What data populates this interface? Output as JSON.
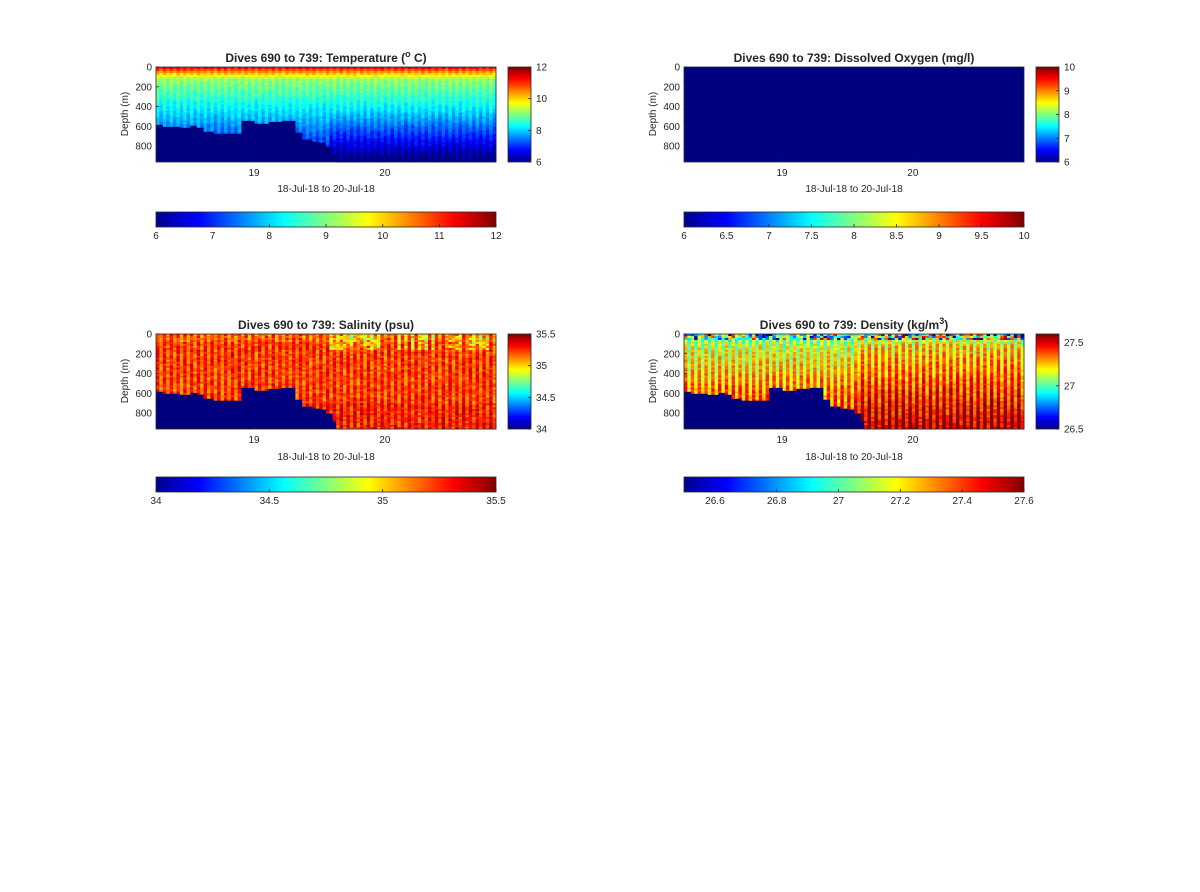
{
  "chart_data": [
    {
      "type": "heatmap",
      "title": "Dives 690 to 739: Temperature (",
      "title_sup": "o",
      "title_tail": " C)",
      "xlabel": "18-Jul-18 to 20-Jul-18",
      "ylabel": "Depth (m)",
      "x_ticks": [
        "19",
        "20"
      ],
      "x_tick_values": [
        19,
        20
      ],
      "xlim": [
        18.25,
        20.85
      ],
      "ylim": [
        0,
        960
      ],
      "y_ticks": [
        0,
        200,
        400,
        600,
        800
      ],
      "y_reversed": true,
      "variable": "temperature",
      "colorbar": {
        "ticks": [
          "6",
          "8",
          "10",
          "12"
        ],
        "tick_values": [
          6,
          8,
          10,
          12
        ],
        "range": [
          6,
          12
        ]
      },
      "hcolorbar": {
        "ticks": [
          "6",
          "7",
          "8",
          "9",
          "10",
          "11",
          "12"
        ],
        "tick_values": [
          6,
          7,
          8,
          9,
          10,
          11,
          12
        ],
        "range": [
          6,
          12
        ]
      },
      "bottom_profile": {
        "x": [
          18.25,
          18.31,
          18.42,
          18.5,
          18.55,
          18.62,
          18.69,
          18.75,
          18.91,
          19.0,
          19.11,
          19.2,
          19.31,
          19.38,
          19.45,
          19.5,
          19.55,
          19.6,
          19.63,
          20.85
        ],
        "depth": [
          580,
          600,
          610,
          590,
          610,
          650,
          670,
          670,
          540,
          570,
          550,
          540,
          660,
          730,
          750,
          760,
          800,
          880,
          960,
          960
        ]
      }
    },
    {
      "type": "heatmap",
      "title": "Dives 690 to 739: Dissolved Oxygen (mg/l)",
      "xlabel": "18-Jul-18 to 20-Jul-18",
      "ylabel": "Depth (m)",
      "x_ticks": [
        "19",
        "20"
      ],
      "x_tick_values": [
        19,
        20
      ],
      "xlim": [
        18.25,
        20.85
      ],
      "ylim": [
        0,
        960
      ],
      "y_ticks": [
        0,
        200,
        400,
        600,
        800
      ],
      "y_reversed": true,
      "variable": "oxygen",
      "colorbar": {
        "ticks": [
          "6",
          "7",
          "8",
          "9",
          "10"
        ],
        "tick_values": [
          6,
          7,
          8,
          9,
          10
        ],
        "range": [
          6,
          10
        ]
      },
      "hcolorbar": {
        "ticks": [
          "6",
          "6.5",
          "7",
          "7.5",
          "8",
          "8.5",
          "9",
          "9.5",
          "10"
        ],
        "tick_values": [
          6,
          6.5,
          7,
          7.5,
          8,
          8.5,
          9,
          9.5,
          10
        ],
        "range": [
          6,
          10
        ]
      },
      "fill_value": 6
    },
    {
      "type": "heatmap",
      "title": "Dives 690 to 739: Salinity (psu)",
      "xlabel": "18-Jul-18 to 20-Jul-18",
      "ylabel": "Depth (m)",
      "x_ticks": [
        "19",
        "20"
      ],
      "x_tick_values": [
        19,
        20
      ],
      "xlim": [
        18.25,
        20.85
      ],
      "ylim": [
        0,
        960
      ],
      "y_ticks": [
        0,
        200,
        400,
        600,
        800
      ],
      "y_reversed": true,
      "variable": "salinity",
      "colorbar": {
        "ticks": [
          "34",
          "34.5",
          "35",
          "35.5"
        ],
        "tick_values": [
          34,
          34.5,
          35,
          35.5
        ],
        "range": [
          34,
          35.5
        ]
      },
      "hcolorbar": {
        "ticks": [
          "34",
          "34.5",
          "35",
          "35.5"
        ],
        "tick_values": [
          34,
          34.5,
          35,
          35.5
        ],
        "range": [
          34,
          35.5
        ]
      },
      "bottom_profile": {
        "x": [
          18.25,
          18.31,
          18.42,
          18.5,
          18.55,
          18.62,
          18.69,
          18.75,
          18.91,
          19.0,
          19.11,
          19.2,
          19.31,
          19.38,
          19.45,
          19.5,
          19.55,
          19.6,
          19.63,
          20.85
        ],
        "depth": [
          580,
          600,
          610,
          590,
          610,
          650,
          670,
          670,
          540,
          570,
          550,
          540,
          660,
          730,
          750,
          760,
          800,
          880,
          960,
          960
        ]
      }
    },
    {
      "type": "heatmap",
      "title": "Dives 690 to 739: Density (kg/m",
      "title_sup": "3",
      "title_tail": ")",
      "xlabel": "18-Jul-18 to 20-Jul-18",
      "ylabel": "Depth (m)",
      "x_ticks": [
        "19",
        "20"
      ],
      "x_tick_values": [
        19,
        20
      ],
      "xlim": [
        18.25,
        20.85
      ],
      "ylim": [
        0,
        960
      ],
      "y_ticks": [
        0,
        200,
        400,
        600,
        800
      ],
      "y_reversed": true,
      "variable": "density",
      "colorbar": {
        "ticks": [
          "26.5",
          "27",
          "27.5"
        ],
        "tick_values": [
          26.5,
          27,
          27.5
        ],
        "range": [
          26.5,
          27.6
        ]
      },
      "hcolorbar": {
        "ticks": [
          "26.6",
          "26.8",
          "27",
          "27.2",
          "27.4",
          "27.6"
        ],
        "tick_values": [
          26.6,
          26.8,
          27,
          27.2,
          27.4,
          27.6
        ],
        "range": [
          26.5,
          27.6
        ]
      },
      "bottom_profile": {
        "x": [
          18.25,
          18.31,
          18.42,
          18.5,
          18.55,
          18.62,
          18.69,
          18.75,
          18.91,
          19.0,
          19.11,
          19.2,
          19.31,
          19.38,
          19.45,
          19.5,
          19.55,
          19.6,
          19.63,
          20.85
        ],
        "depth": [
          580,
          600,
          610,
          590,
          610,
          650,
          670,
          670,
          540,
          570,
          550,
          540,
          660,
          730,
          750,
          760,
          800,
          880,
          960,
          960
        ]
      }
    }
  ],
  "colormap": "jet",
  "no_data_color": "#00007f"
}
